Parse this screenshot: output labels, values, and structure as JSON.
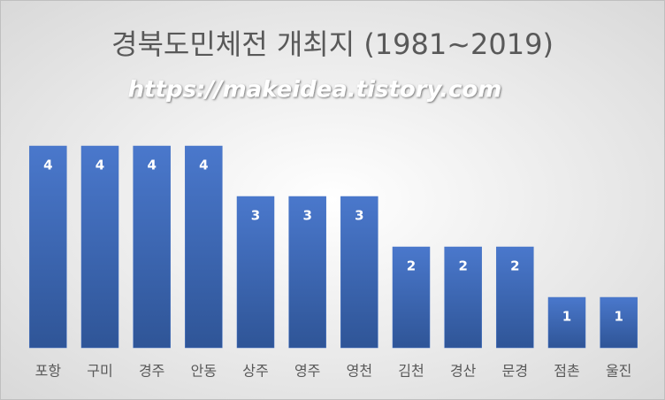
{
  "chart_data": {
    "type": "bar",
    "title": "경북도민체전 개최지 (1981~2019)",
    "subtitle": "https://makeidea.tistory.com",
    "categories": [
      "포항",
      "구미",
      "경주",
      "안동",
      "상주",
      "영주",
      "영천",
      "김천",
      "경산",
      "문경",
      "점촌",
      "울진"
    ],
    "values": [
      4,
      4,
      4,
      4,
      3,
      3,
      3,
      2,
      2,
      2,
      1,
      1
    ],
    "color": "#4472c4"
  }
}
